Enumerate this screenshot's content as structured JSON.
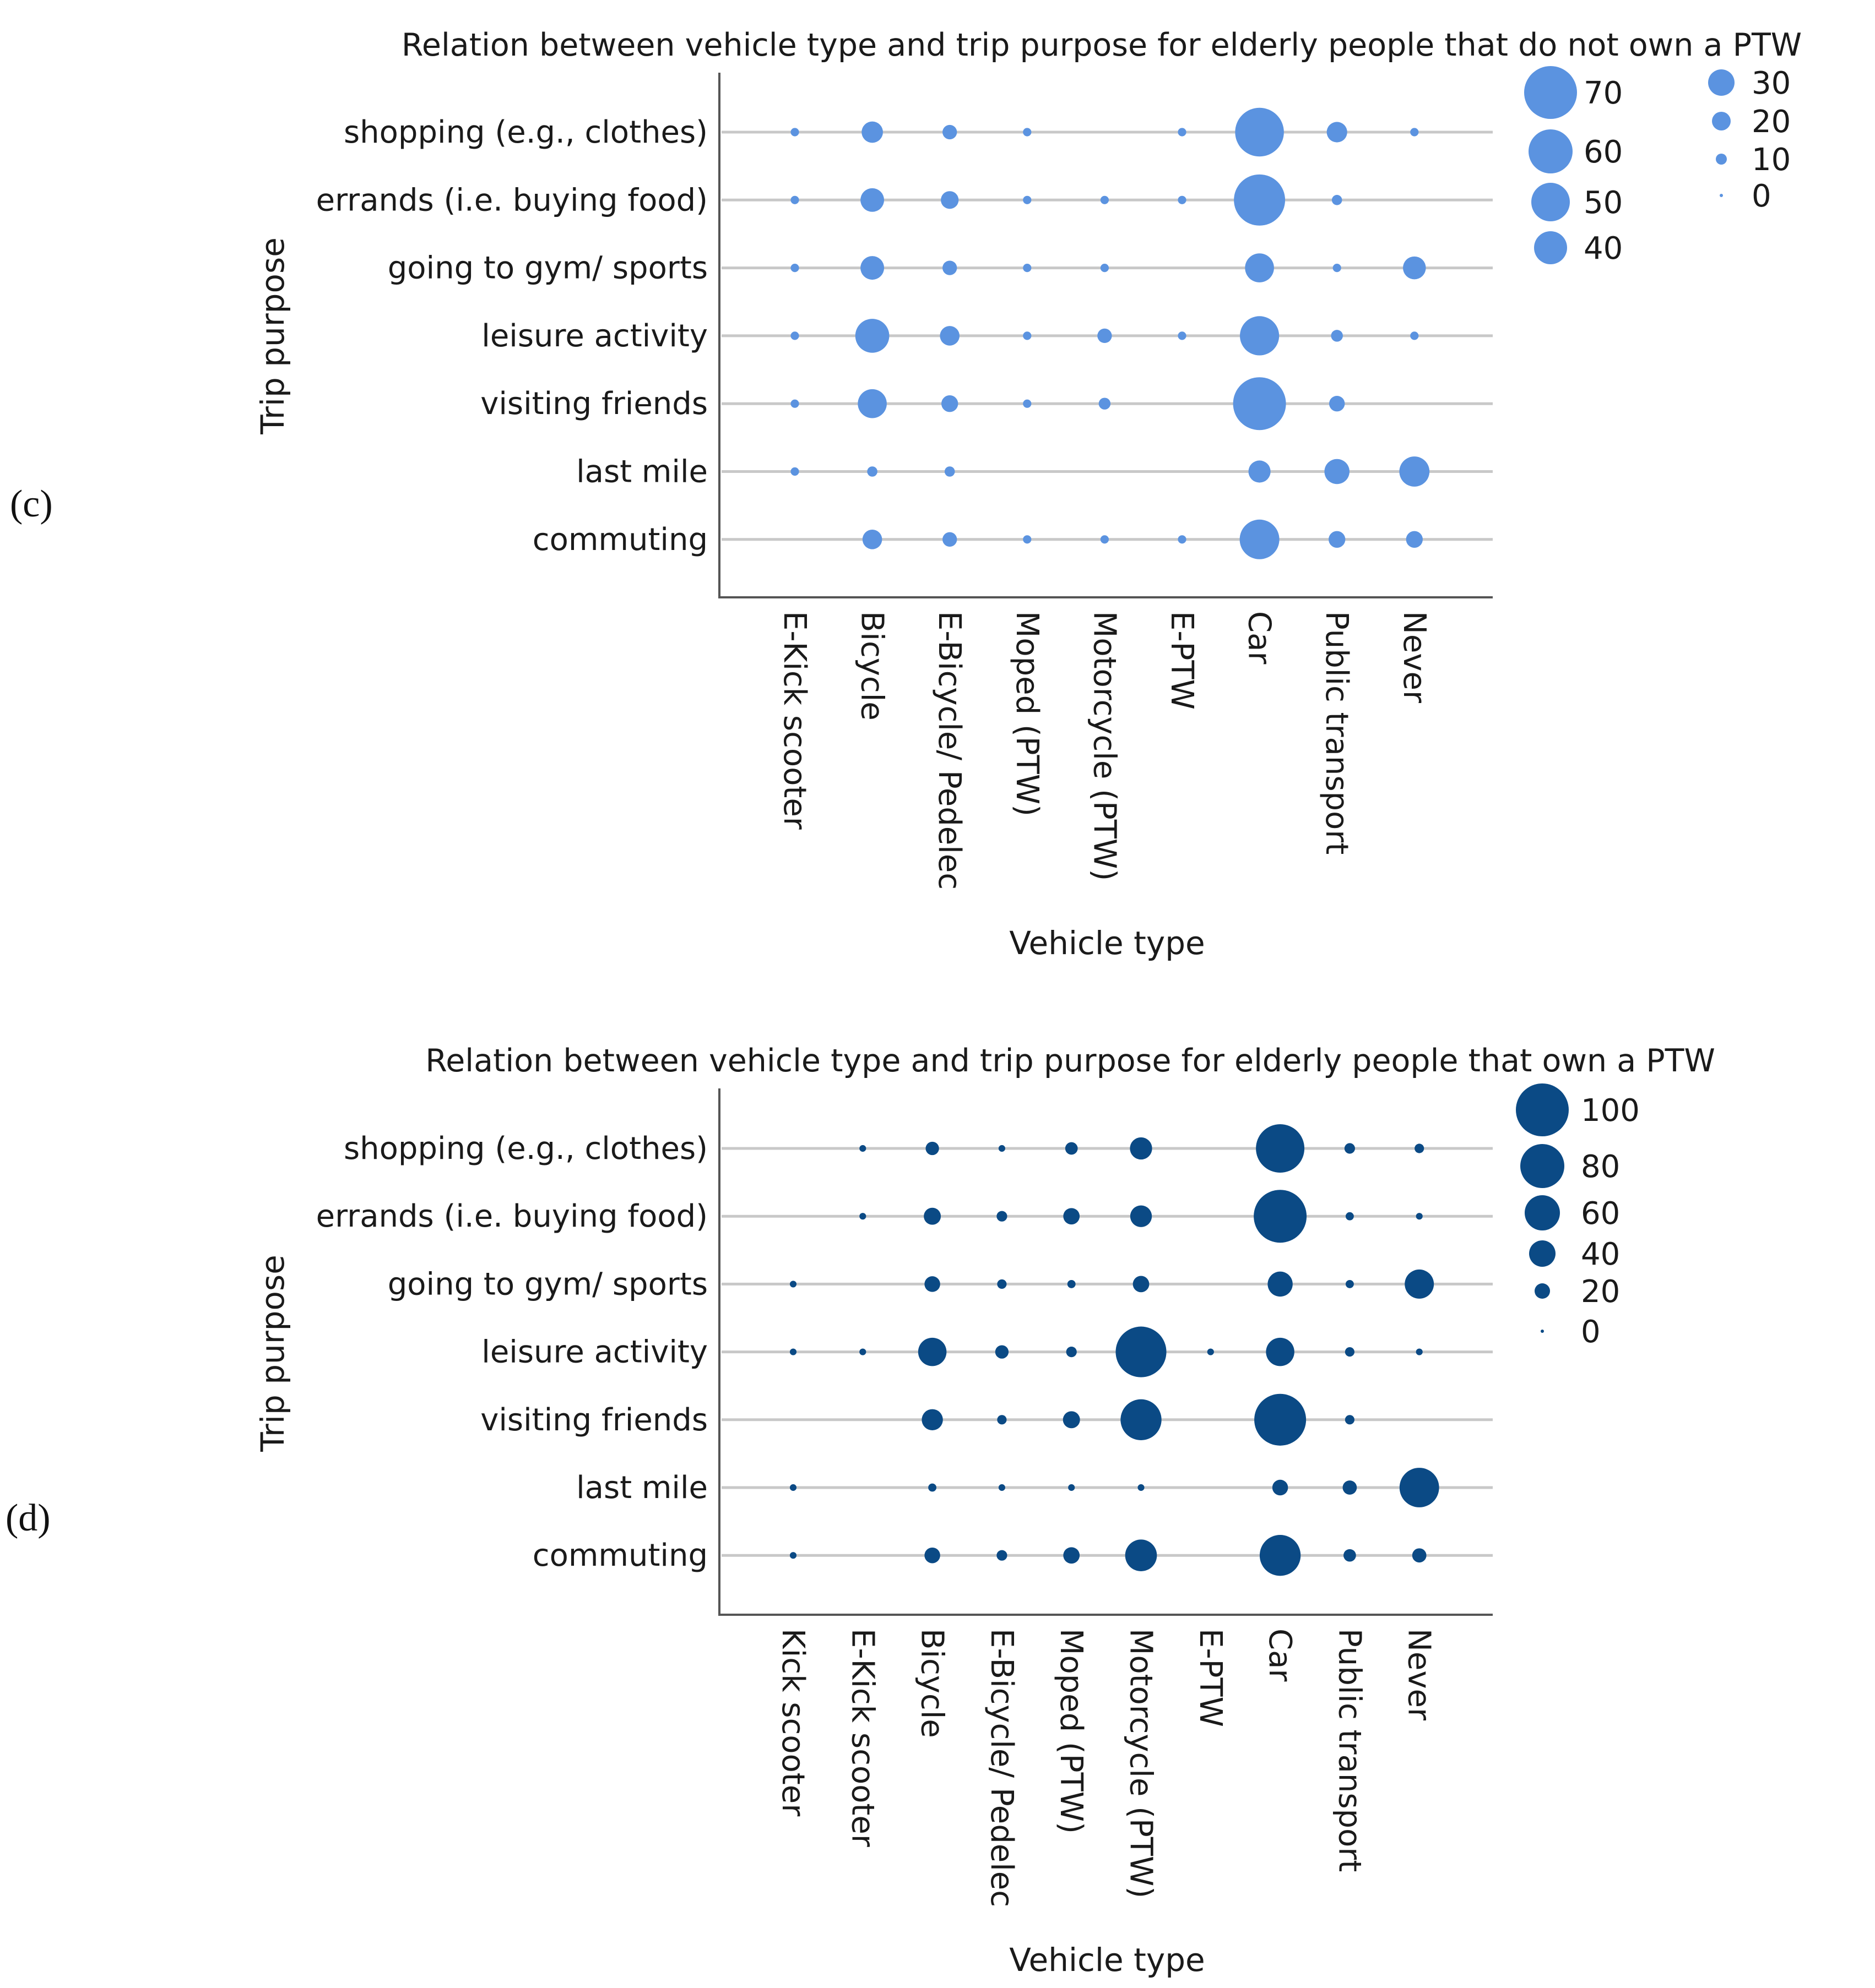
{
  "figure": {
    "label_c": "(c)",
    "label_d": "(d)"
  },
  "chart_data": [
    {
      "id": "c",
      "type": "scatter",
      "subtype": "bubble",
      "title": "Relation between vehicle type and trip purpose for elderly people that do not own a PTW",
      "xlabel": "Vehicle type",
      "ylabel": "Trip purpose",
      "color": "#5b93e0",
      "x_categories": [
        "E-Kick scooter",
        "Bicycle",
        "E-Bicycle/ Pedelec",
        "Moped (PTW)",
        "Motorcycle (PTW)",
        "E-PTW",
        "Car",
        "Public transport",
        "Never"
      ],
      "y_categories": [
        "shopping (e.g., clothes)",
        "errands (i.e. buying food)",
        "going to gym/ sports",
        "leisure activity",
        "visiting friends",
        "last mile",
        "commuting"
      ],
      "values": [
        [
          2,
          13,
          6,
          2,
          null,
          2,
          68,
          12,
          2
        ],
        [
          2,
          16,
          9,
          2,
          2,
          2,
          75,
          3,
          null
        ],
        [
          2,
          16,
          6,
          2,
          2,
          null,
          24,
          2,
          15
        ],
        [
          2,
          33,
          11,
          2,
          6,
          2,
          44,
          4,
          2
        ],
        [
          2,
          24,
          8,
          2,
          4,
          null,
          80,
          7,
          null
        ],
        [
          2,
          3,
          3,
          null,
          null,
          null,
          14,
          18,
          26
        ],
        [
          null,
          11,
          6,
          2,
          2,
          2,
          45,
          8,
          8
        ]
      ],
      "size_legend": {
        "col1": [
          "70",
          "60",
          "50",
          "40"
        ],
        "col2": [
          "30",
          "20",
          "10",
          "0"
        ]
      }
    },
    {
      "id": "d",
      "type": "scatter",
      "subtype": "bubble",
      "title": "Relation between vehicle type and trip purpose for elderly people that own a PTW",
      "xlabel": "Vehicle type",
      "ylabel": "Trip purpose",
      "color": "#0b4a85",
      "x_categories": [
        "Kick scooter",
        "E-Kick scooter",
        "Bicycle",
        "E-Bicycle/ Pedelec",
        "Moped (PTW)",
        "Motorcycle (PTW)",
        "E-PTW",
        "Car",
        "Public transport",
        "Never"
      ],
      "y_categories": [
        "shopping (e.g., clothes)",
        "errands (i.e. buying food)",
        "going to gym/ sports",
        "leisure activity",
        "visiting friends",
        "last mile",
        "commuting"
      ],
      "values": [
        [
          null,
          2,
          8,
          2,
          7,
          22,
          null,
          105,
          5,
          4
        ],
        [
          null,
          2,
          13,
          5,
          12,
          21,
          null,
          125,
          3,
          2
        ],
        [
          2,
          null,
          11,
          4,
          3,
          12,
          null,
          28,
          3,
          38
        ],
        [
          2,
          2,
          36,
          8,
          5,
          115,
          2,
          36,
          4,
          2
        ],
        [
          null,
          null,
          20,
          4,
          13,
          75,
          null,
          120,
          4,
          null
        ],
        [
          2,
          null,
          3,
          2,
          2,
          2,
          null,
          11,
          9,
          70
        ],
        [
          2,
          null,
          11,
          5,
          12,
          45,
          null,
          75,
          7,
          9
        ]
      ],
      "size_legend": {
        "col1": [
          "100",
          "80",
          "60",
          "40",
          "20",
          "0"
        ]
      }
    }
  ]
}
